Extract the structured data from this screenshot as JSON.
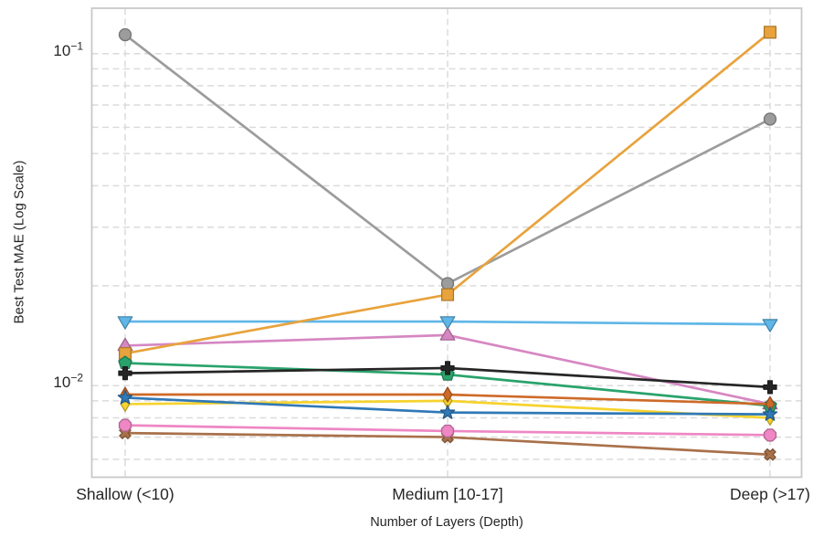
{
  "figure": {
    "background": "#ffffff",
    "plot_background": "#ffffff",
    "grid_color": "#dbdbdb",
    "spine_color": "#c8c8c8",
    "text_color": "#262626"
  },
  "chart_data": {
    "type": "line",
    "title": "",
    "xlabel": "Number of Layers (Depth)",
    "ylabel": "Best Test MAE (Log Scale)",
    "yscale": "log",
    "ylim": [
      0.0053,
      0.137
    ],
    "grid": "both-dashed",
    "legend_position": "none",
    "categories": [
      "Shallow (<10)",
      "Medium [10-17]",
      "Deep (>17)"
    ],
    "yticks": [
      {
        "value": 0.1,
        "base": "10",
        "exponent": "−1"
      },
      {
        "value": 0.01,
        "base": "10",
        "exponent": "−2"
      }
    ],
    "series": [
      {
        "name": "gray-circle",
        "color": "#9C9C9C",
        "marker": "circle",
        "values": [
          0.114,
          0.0203,
          0.0635
        ]
      },
      {
        "name": "skyblue-triangle-down",
        "color": "#5FB6E7",
        "marker": "triangle-down",
        "values": [
          0.0156,
          0.0156,
          0.0153
        ]
      },
      {
        "name": "orchid-triangle-up",
        "color": "#D687C2",
        "marker": "triangle-up",
        "values": [
          0.0132,
          0.0142,
          0.0088
        ]
      },
      {
        "name": "orange-square",
        "color": "#E8A33D",
        "marker": "square",
        "values": [
          0.0125,
          0.0188,
          0.116
        ]
      },
      {
        "name": "green-pentagon",
        "color": "#29A36B",
        "marker": "pentagon",
        "values": [
          0.0117,
          0.0108,
          0.0087
        ]
      },
      {
        "name": "black-plus",
        "color": "#262626",
        "marker": "plus",
        "values": [
          0.0109,
          0.0113,
          0.0099
        ]
      },
      {
        "name": "gold-thin-diamond",
        "color": "#F6D32E",
        "marker": "thin-diamond",
        "values": [
          0.0088,
          0.009,
          0.008
        ]
      },
      {
        "name": "chocolate-thin-diamond",
        "color": "#CE6A28",
        "marker": "thin-diamond",
        "values": [
          0.0094,
          0.0094,
          0.0088
        ]
      },
      {
        "name": "steelblue-star",
        "color": "#3079B6",
        "marker": "star",
        "values": [
          0.0092,
          0.0083,
          0.0082
        ]
      },
      {
        "name": "brown-x",
        "color": "#A9714B",
        "marker": "x",
        "values": [
          0.0072,
          0.007,
          0.0062
        ]
      },
      {
        "name": "pink-octagon",
        "color": "#EE87C4",
        "marker": "octagon",
        "values": [
          0.0076,
          0.0073,
          0.0071
        ]
      }
    ]
  }
}
